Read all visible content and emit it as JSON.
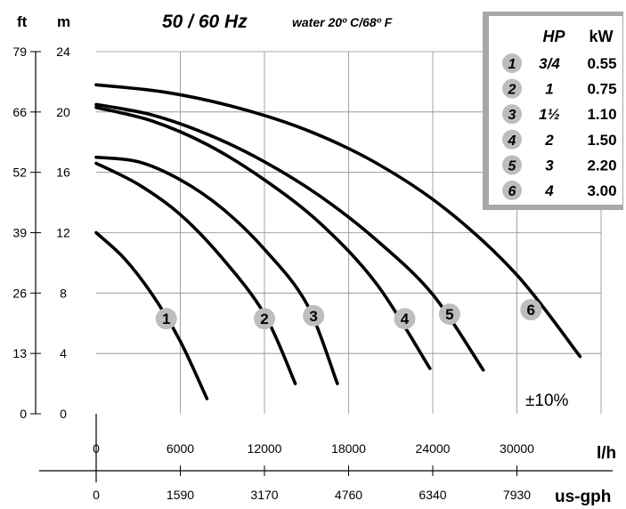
{
  "chart_data": {
    "type": "line",
    "title": "50 / 60 Hz",
    "subtitle": "water 20º C/68º F",
    "y_left_unit": "ft",
    "y_right_unit": "m",
    "x_unit_lh": "l/h",
    "x_unit_gph": "us-gph",
    "y_ticks_m": [
      "0",
      "4",
      "8",
      "12",
      "16",
      "20",
      "24"
    ],
    "y_ticks_ft": [
      "0",
      "13",
      "26",
      "39",
      "52",
      "66",
      "79"
    ],
    "x_ticks_lh": [
      "0",
      "6000",
      "12000",
      "18000",
      "24000",
      "30000"
    ],
    "x_ticks_gph": [
      "0",
      "1590",
      "3170",
      "4760",
      "6340",
      "7930"
    ],
    "xlim_lh": [
      0,
      36000
    ],
    "ylim_m": [
      0,
      24
    ],
    "grid": true,
    "tolerance_label": "±10%",
    "legend": {
      "header_hp": "HP",
      "header_kw": "kW",
      "rows": [
        {
          "num": "1",
          "hp": "3/4",
          "kw": "0.55"
        },
        {
          "num": "2",
          "hp": "1",
          "kw": "0.75"
        },
        {
          "num": "3",
          "hp": "1½",
          "kw": "1.10"
        },
        {
          "num": "4",
          "hp": "2",
          "kw": "1.50"
        },
        {
          "num": "5",
          "hp": "3",
          "kw": "2.20"
        },
        {
          "num": "6",
          "hp": "4",
          "kw": "3.00"
        }
      ]
    },
    "series": [
      {
        "label": "1",
        "label_at": [
          5000,
          6.3
        ],
        "points": [
          [
            0,
            12
          ],
          [
            2000,
            10.3
          ],
          [
            4000,
            7.9
          ],
          [
            6000,
            4.8
          ],
          [
            7900,
            1
          ]
        ]
      },
      {
        "label": "2",
        "label_at": [
          12000,
          6.3
        ],
        "points": [
          [
            0,
            16.6
          ],
          [
            3000,
            15.2
          ],
          [
            6000,
            13.2
          ],
          [
            9000,
            10.3
          ],
          [
            12000,
            6.6
          ],
          [
            14200,
            2
          ]
        ]
      },
      {
        "label": "3",
        "label_at": [
          15500,
          6.5
        ],
        "points": [
          [
            0,
            17
          ],
          [
            3000,
            16.7
          ],
          [
            6000,
            15.5
          ],
          [
            9000,
            13.6
          ],
          [
            12000,
            10.9
          ],
          [
            15000,
            7.3
          ],
          [
            17200,
            2
          ]
        ]
      },
      {
        "label": "4",
        "label_at": [
          22000,
          6.3
        ],
        "points": [
          [
            0,
            20.3
          ],
          [
            4000,
            19.4
          ],
          [
            8000,
            17.8
          ],
          [
            12000,
            15.5
          ],
          [
            16000,
            12.6
          ],
          [
            20000,
            8.6
          ],
          [
            23800,
            3
          ]
        ]
      },
      {
        "label": "5",
        "label_at": [
          25200,
          6.6
        ],
        "points": [
          [
            0,
            20.5
          ],
          [
            4000,
            19.8
          ],
          [
            8000,
            18.5
          ],
          [
            12000,
            16.7
          ],
          [
            16000,
            14.4
          ],
          [
            20000,
            11.5
          ],
          [
            24000,
            7.9
          ],
          [
            27600,
            2.9
          ]
        ]
      },
      {
        "label": "6",
        "label_at": [
          31000,
          6.9
        ],
        "points": [
          [
            0,
            21.8
          ],
          [
            5000,
            21.3
          ],
          [
            10000,
            20.3
          ],
          [
            15000,
            18.8
          ],
          [
            20000,
            16.6
          ],
          [
            25000,
            13.5
          ],
          [
            30000,
            9.2
          ],
          [
            34500,
            3.8
          ]
        ]
      }
    ]
  }
}
